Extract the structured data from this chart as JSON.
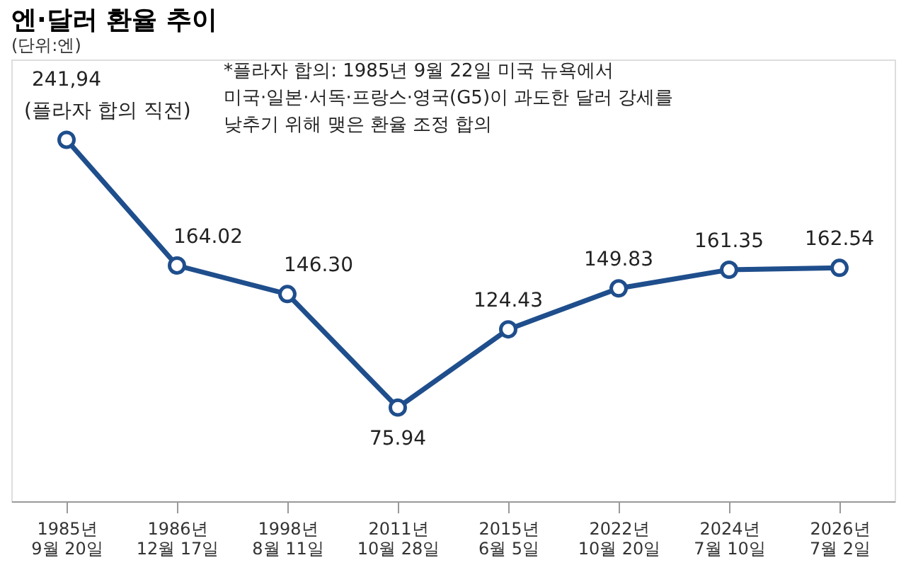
{
  "chart_data": {
    "type": "line",
    "title": "엔·달러 환율 추이",
    "subtitle": "(단위:엔)",
    "categories": [
      "1985년 9월 20일",
      "1986년 12월 17일",
      "1998년 8월 11일",
      "2011년 10월 28일",
      "2015년 6월 5일",
      "2022년 10월 20일",
      "2024년 7월 10일",
      "2026년 7월 2일"
    ],
    "values": [
      241.94,
      164.02,
      146.3,
      75.94,
      124.43,
      149.83,
      161.35,
      162.54
    ],
    "value_labels": [
      "241,94",
      "164.02",
      "146.30",
      "75.94",
      "124.43",
      "149.83",
      "161.35",
      "162.54"
    ],
    "color": "#1f4e8c",
    "marker": "circle",
    "grid": false,
    "annotations": [
      {
        "text": "(플라자 합의 직전)",
        "x": "1985년 9월 20일",
        "y": 241.94
      },
      "*플라자 합의: 1985년 9월 22일 미국 뉴욕에서 미국·일본·서독·프랑스·영국(G5)이 과도한 달러 강세를 낮추기 위해 맺은 환율 조정 합의"
    ]
  }
}
